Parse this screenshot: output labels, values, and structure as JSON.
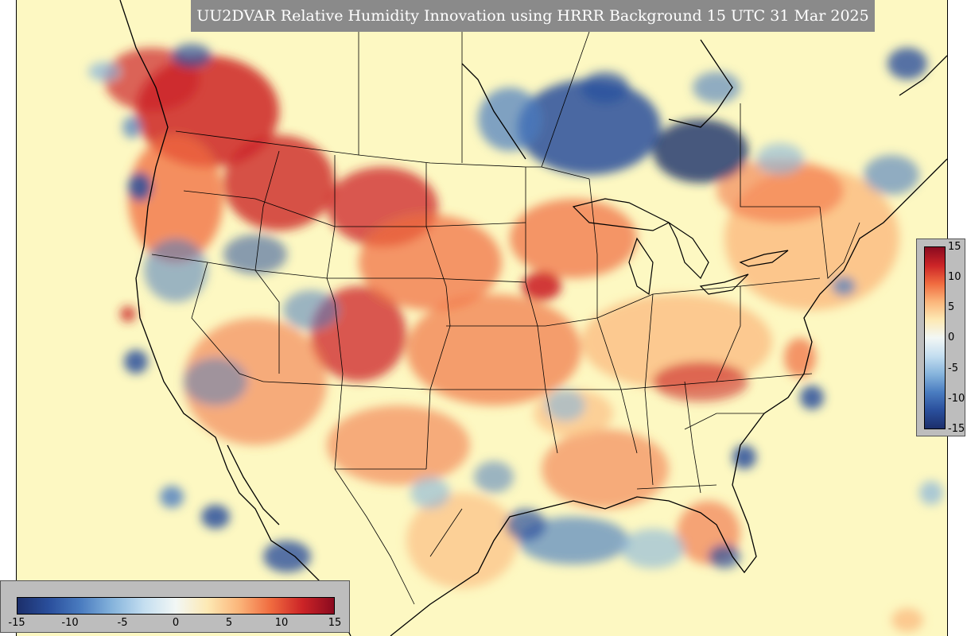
{
  "title": "UU2DVAR Relative Humidity Innovation using HRRR Background 15 UTC 31 Mar 2025",
  "colorbar": {
    "min": -15,
    "max": 15,
    "vertical_ticks": [
      "15",
      "10",
      "5",
      "0",
      "-5",
      "-10",
      "-15"
    ],
    "horizontal_ticks": [
      "-15",
      "-10",
      "-5",
      "0",
      "5",
      "10",
      "15"
    ],
    "colors": [
      "#1c2f6b",
      "#2a4f9c",
      "#4a7cc0",
      "#86b4dc",
      "#c4def0",
      "#f2f7f5",
      "#fde9b4",
      "#fbb57a",
      "#f06b3f",
      "#cc2427",
      "#8a0a1f"
    ]
  },
  "map": {
    "region": "CONUS",
    "background_color": "#fdf8c2",
    "boundary_color": "#000000",
    "dominant_pattern": "positive (red) innovations over the western and central US, negative (blue) over southern Canada, Great Lakes and coastal waters"
  }
}
